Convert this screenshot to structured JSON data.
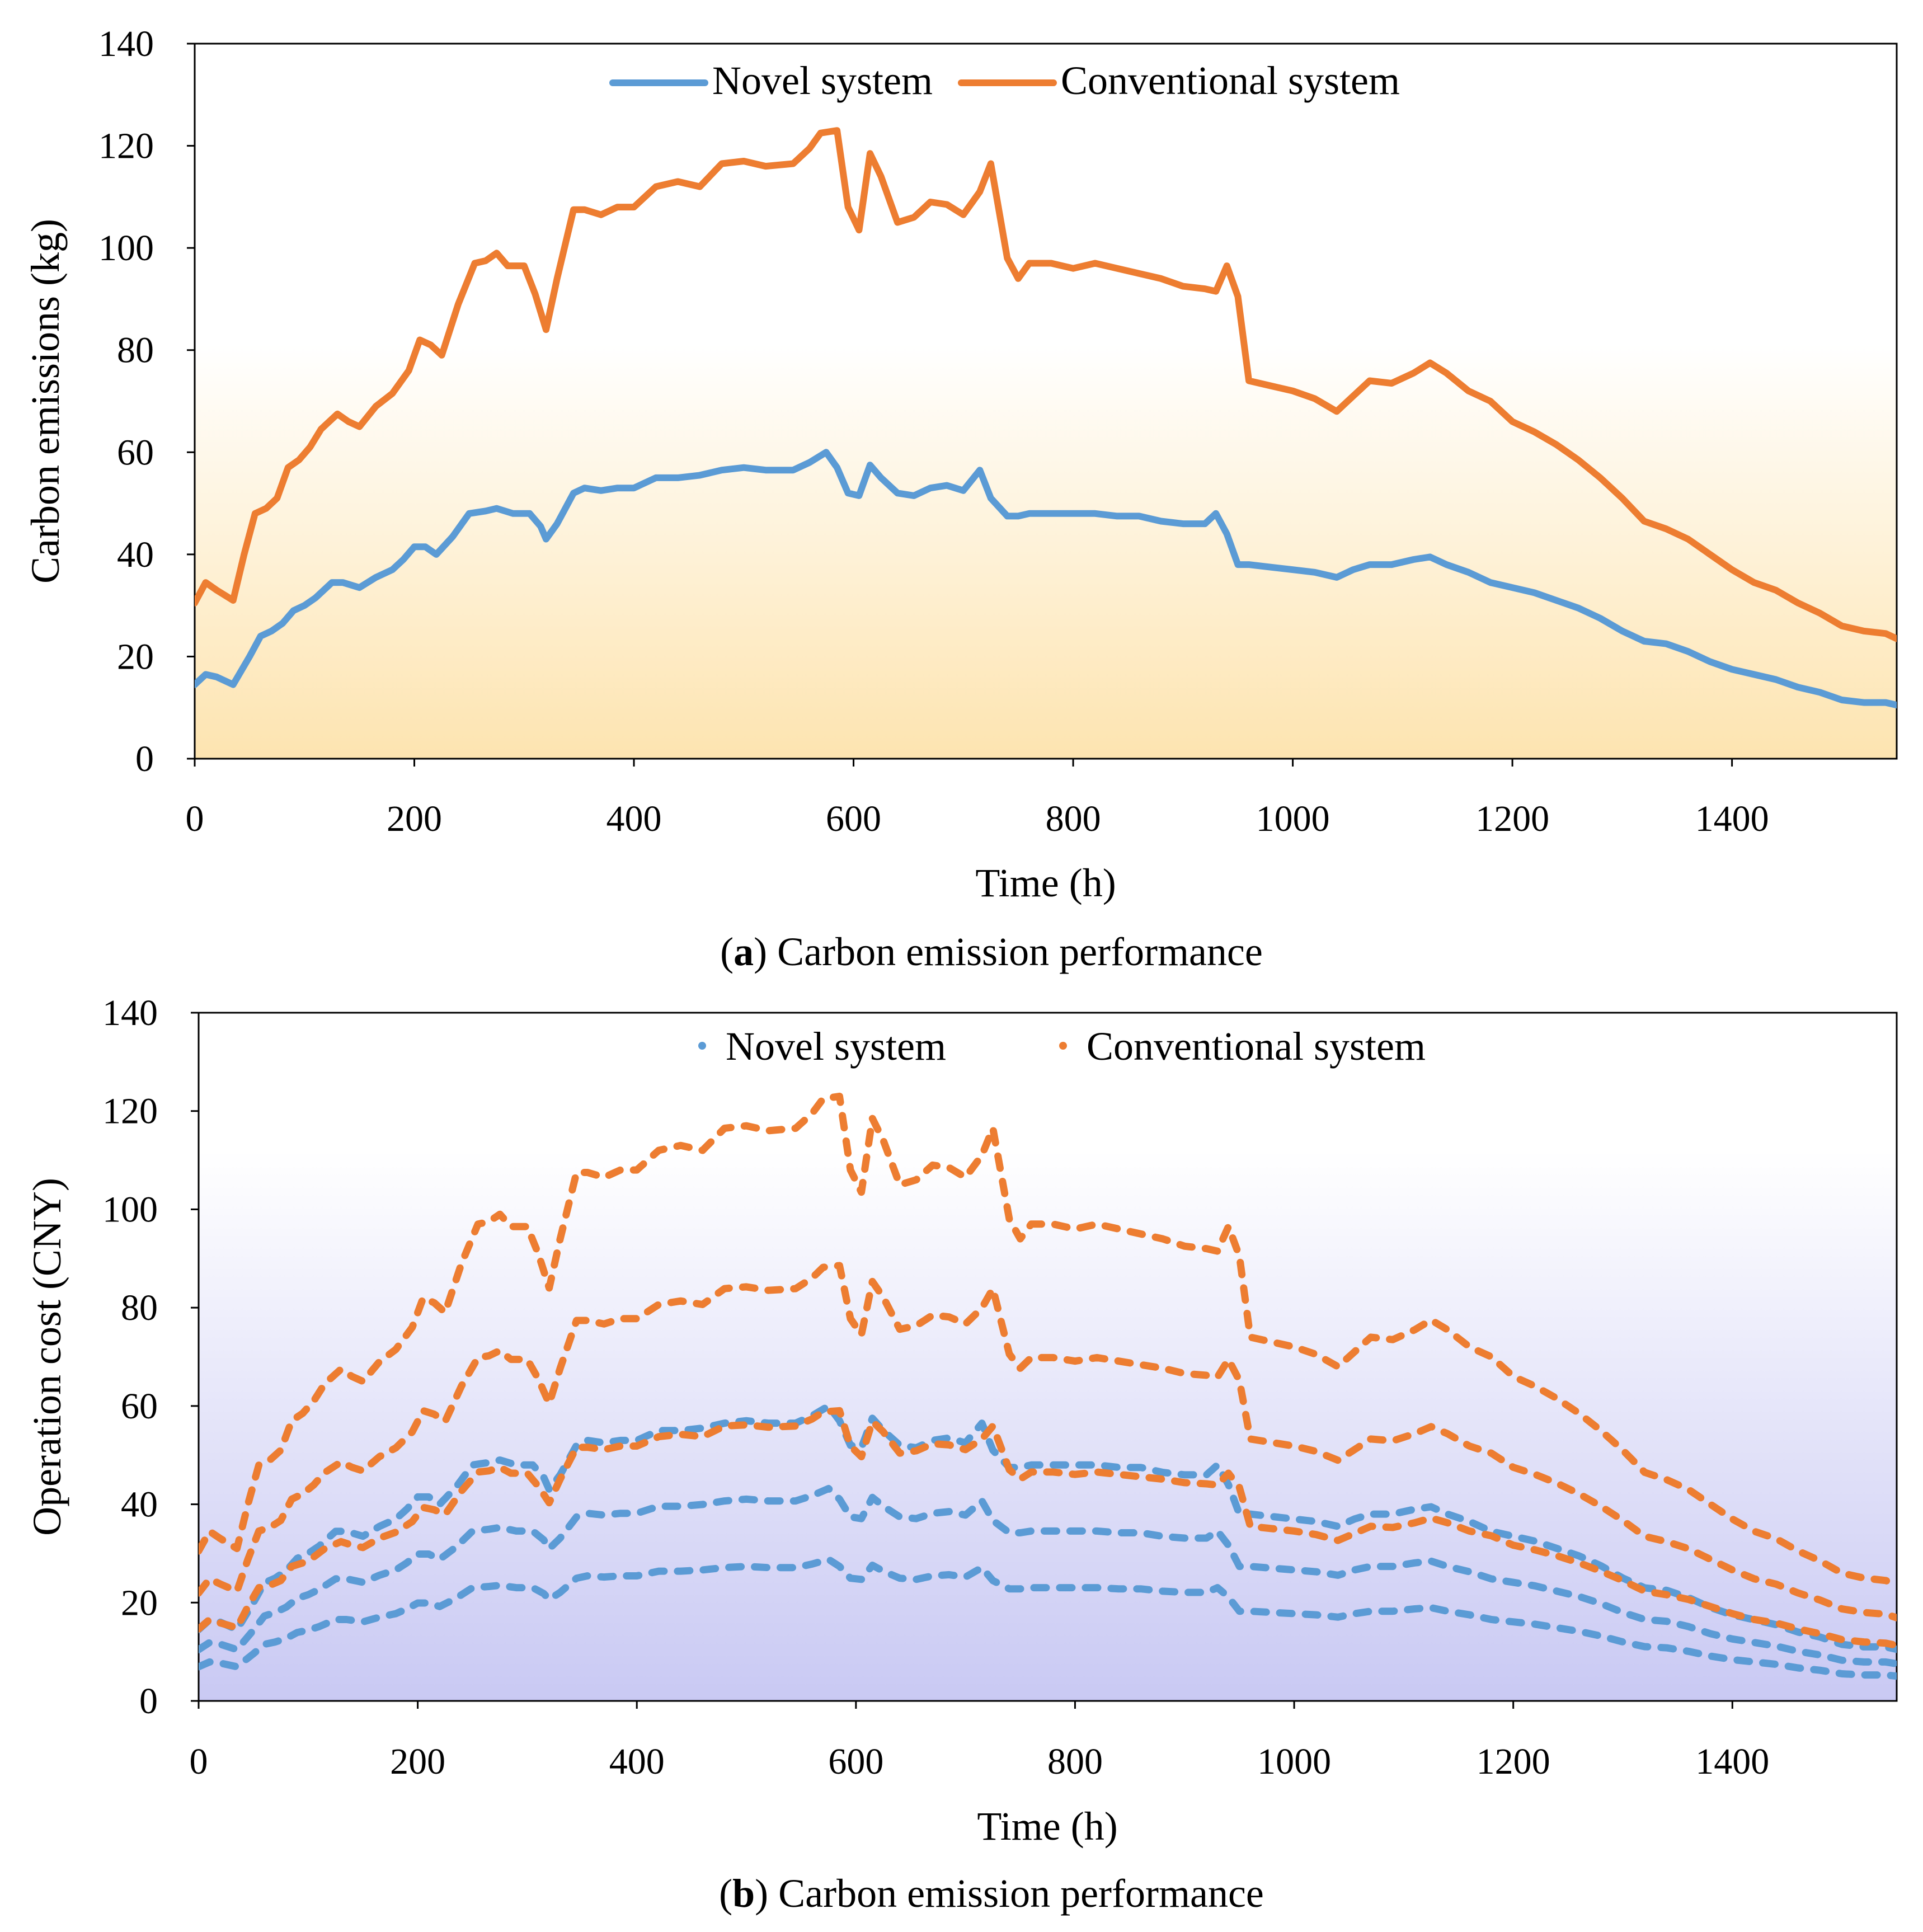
{
  "figure": {
    "panels": [
      {
        "caption_letter": "a",
        "caption_text": ") Carbon emission performance",
        "caption_open": "("
      },
      {
        "caption_letter": "b",
        "caption_text": ") Carbon emission performance",
        "caption_open": "("
      }
    ]
  },
  "colors": {
    "novel": "#5b9bd5",
    "conventional": "#ed7d31",
    "panel_a_gradient_top": "#ffffff",
    "panel_a_gradient_bottom": "#fde4b0",
    "panel_b_gradient_top": "#ffffff",
    "panel_b_gradient_bottom": "#c9c9f3",
    "axis": "#000000"
  },
  "chart_data": [
    {
      "type": "line",
      "title": "(a) Carbon emission performance",
      "xlabel": "Time (h)",
      "ylabel": "Carbon emissions (kg)",
      "xlim": [
        0,
        1550
      ],
      "ylim": [
        0,
        140
      ],
      "xticks": [
        "0",
        "200",
        "400",
        "600",
        "800",
        "1000",
        "1200",
        "1400"
      ],
      "yticks": [
        "0",
        "20",
        "40",
        "60",
        "80",
        "100",
        "120",
        "140"
      ],
      "legend": [
        "Novel system",
        "Conventional system"
      ],
      "line_style": "solid",
      "series": [
        {
          "name": "Novel system",
          "x": [
            0,
            10,
            20,
            35,
            50,
            60,
            70,
            80,
            90,
            100,
            110,
            125,
            135,
            150,
            165,
            180,
            190,
            200,
            210,
            220,
            235,
            250,
            265,
            275,
            290,
            305,
            315,
            320,
            330,
            345,
            355,
            370,
            385,
            400,
            420,
            440,
            460,
            480,
            500,
            520,
            545,
            560,
            575,
            585,
            595,
            605,
            615,
            625,
            640,
            655,
            670,
            685,
            700,
            715,
            725,
            740,
            750,
            760,
            780,
            800,
            820,
            840,
            860,
            880,
            900,
            920,
            930,
            940,
            950,
            960,
            980,
            1000,
            1020,
            1040,
            1055,
            1070,
            1090,
            1110,
            1125,
            1140,
            1160,
            1180,
            1200,
            1220,
            1240,
            1260,
            1280,
            1300,
            1320,
            1340,
            1360,
            1380,
            1400,
            1420,
            1440,
            1460,
            1480,
            1500,
            1520,
            1540,
            1550
          ],
          "values": [
            14.5,
            16.5,
            16,
            14.5,
            20,
            24,
            25,
            26.5,
            29,
            30,
            31.5,
            34.5,
            34.5,
            33.5,
            35.5,
            37,
            39,
            41.5,
            41.5,
            40,
            43.5,
            48,
            48.5,
            49,
            48,
            48,
            45.5,
            43,
            46,
            52,
            53,
            52.5,
            53,
            53,
            55,
            55,
            55.5,
            56.5,
            57,
            56.5,
            56.5,
            58,
            60,
            57,
            52,
            51.5,
            57.5,
            55,
            52,
            51.5,
            53,
            53.5,
            52.5,
            56.5,
            51,
            47.5,
            47.5,
            48,
            48,
            48,
            48,
            47.5,
            47.5,
            46.5,
            46,
            46,
            48,
            44,
            38,
            38,
            37.5,
            37,
            36.5,
            35.5,
            37,
            38,
            38,
            39,
            39.5,
            38,
            36.5,
            34.5,
            33.5,
            32.5,
            31,
            29.5,
            27.5,
            25,
            23,
            22.5,
            21,
            19,
            17.5,
            16.5,
            15.5,
            14,
            13,
            11.5,
            11,
            11,
            10.5
          ]
        },
        {
          "name": "Conventional system",
          "x": [
            0,
            10,
            20,
            35,
            45,
            55,
            65,
            75,
            85,
            95,
            105,
            115,
            130,
            140,
            150,
            165,
            180,
            195,
            205,
            215,
            225,
            240,
            255,
            265,
            275,
            285,
            300,
            310,
            320,
            330,
            345,
            355,
            370,
            385,
            400,
            420,
            440,
            460,
            480,
            500,
            520,
            545,
            560,
            570,
            585,
            595,
            605,
            615,
            625,
            640,
            655,
            670,
            685,
            700,
            715,
            725,
            740,
            750,
            760,
            780,
            800,
            820,
            840,
            860,
            880,
            900,
            920,
            930,
            940,
            950,
            960,
            980,
            1000,
            1020,
            1040,
            1055,
            1070,
            1090,
            1110,
            1125,
            1140,
            1160,
            1180,
            1200,
            1220,
            1240,
            1260,
            1280,
            1300,
            1320,
            1340,
            1360,
            1380,
            1400,
            1420,
            1440,
            1460,
            1480,
            1500,
            1520,
            1540,
            1550
          ],
          "values": [
            30.5,
            34.5,
            33,
            31,
            40,
            48,
            49,
            51,
            57,
            58.5,
            61,
            64.5,
            67.5,
            66,
            65,
            69,
            71.5,
            76,
            82,
            81,
            79,
            89,
            97,
            97.5,
            99,
            96.5,
            96.5,
            91,
            84,
            94,
            107.5,
            107.5,
            106.5,
            108,
            108,
            112,
            113,
            112,
            116.5,
            117,
            116,
            116.5,
            119.5,
            122.5,
            123,
            108,
            103.5,
            118.5,
            114,
            105,
            106,
            109,
            108.5,
            106.5,
            111,
            116.5,
            98,
            94,
            97,
            97,
            96,
            97,
            96,
            95,
            94,
            92.5,
            92,
            91.5,
            96.5,
            90.5,
            74,
            73,
            72,
            70.5,
            68,
            71,
            74,
            73.5,
            75.5,
            77.5,
            75.5,
            72,
            70,
            66,
            64,
            61.5,
            58.5,
            55,
            51,
            46.5,
            45,
            43,
            40,
            37,
            34.5,
            33,
            30.5,
            28.5,
            26,
            25,
            24.5,
            23.5
          ]
        }
      ]
    },
    {
      "type": "scatter",
      "title": "(b) Carbon emission performance",
      "xlabel": "Time (h)",
      "ylabel": "Operation cost (CNY)",
      "xlim": [
        0,
        1550
      ],
      "ylim": [
        0,
        140
      ],
      "xticks": [
        "0",
        "200",
        "400",
        "600",
        "800",
        "1000",
        "1200",
        "1400"
      ],
      "yticks": [
        "0",
        "20",
        "40",
        "60",
        "80",
        "100",
        "120",
        "140"
      ],
      "legend": [
        "Novel system",
        "Conventional system"
      ],
      "line_style": "dotted",
      "scale_factors": [
        1.0,
        0.72,
        0.48
      ],
      "series": [
        {
          "name": "Novel system",
          "base_series_ref": "chart_data[0].series[0]"
        },
        {
          "name": "Conventional system",
          "base_series_ref": "chart_data[0].series[1]"
        }
      ]
    }
  ]
}
